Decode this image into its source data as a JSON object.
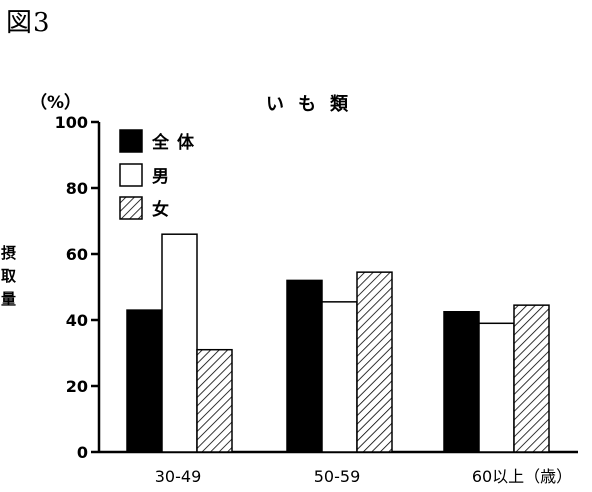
{
  "figure_label": "図3",
  "chart_data": {
    "type": "bar",
    "title": "いも類",
    "unit_label": "（%）",
    "ylabel": "摂取量",
    "ylim": [
      0,
      100
    ],
    "yticks": [
      0,
      20,
      40,
      60,
      80,
      100
    ],
    "categories": [
      "30-49",
      "50-59",
      "60以上（歳）"
    ],
    "series": [
      {
        "name": "全体",
        "values": [
          43,
          52,
          42.5
        ],
        "fill": "solid-black"
      },
      {
        "name": "男",
        "values": [
          66,
          45.5,
          39
        ],
        "fill": "white"
      },
      {
        "name": "女",
        "values": [
          31,
          54.5,
          44.5
        ],
        "fill": "diagonal-hatch"
      }
    ],
    "legend_position": "top-left",
    "grid": false,
    "colors": {
      "bar_black": "#000000",
      "bar_white": "#ffffff",
      "hatch": "#000000"
    }
  }
}
